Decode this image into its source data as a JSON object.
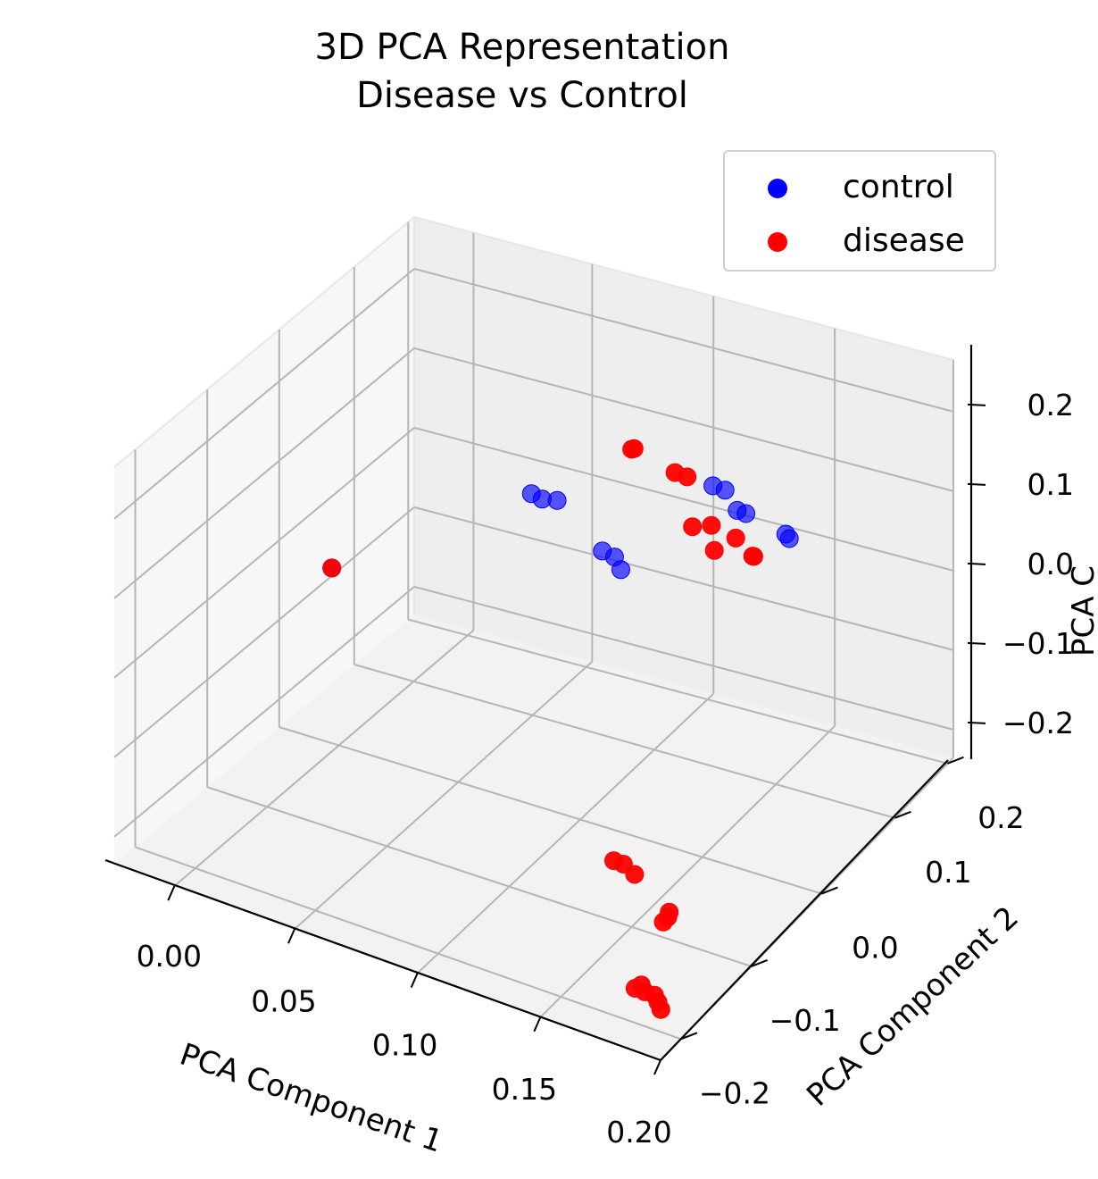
{
  "chart_data": {
    "type": "scatter",
    "subtype": "3d-scatter",
    "title": "3D PCA Representation",
    "subtitle": "Disease vs Control",
    "xlabel": "PCA Component 1",
    "ylabel": "PCA Component 2",
    "zlabel": "PCA C",
    "x_ticks": [
      "0.00",
      "0.05",
      "0.10",
      "0.15",
      "0.20"
    ],
    "y_ticks": [
      "−0.2",
      "−0.1",
      "0.0",
      "0.1",
      "0.2"
    ],
    "z_ticks": [
      "−0.2",
      "−0.1",
      "0.0",
      "0.1",
      "0.2"
    ],
    "xlim": [
      0.0,
      0.2
    ],
    "ylim": [
      -0.2,
      0.2
    ],
    "zlim": [
      -0.2,
      0.2
    ],
    "grid": true,
    "legend_position": "top-right",
    "series": [
      {
        "name": "control",
        "color": "#0000ff",
        "points": [
          {
            "x": 0.0,
            "y": 0.0,
            "z": 0.0
          },
          {
            "x": 0.04,
            "y": 0.15,
            "z": 0.03
          },
          {
            "x": 0.045,
            "y": 0.148,
            "z": 0.03
          },
          {
            "x": 0.05,
            "y": 0.152,
            "z": 0.031
          },
          {
            "x": 0.072,
            "y": 0.14,
            "z": -0.0
          },
          {
            "x": 0.077,
            "y": 0.14,
            "z": -0.002
          },
          {
            "x": 0.081,
            "y": 0.135,
            "z": -0.01
          },
          {
            "x": 0.095,
            "y": 0.22,
            "z": 0.05
          },
          {
            "x": 0.1,
            "y": 0.22,
            "z": 0.05
          },
          {
            "x": 0.105,
            "y": 0.22,
            "z": 0.03
          },
          {
            "x": 0.11,
            "y": 0.215,
            "z": 0.035
          },
          {
            "x": 0.125,
            "y": 0.22,
            "z": 0.022
          },
          {
            "x": 0.127,
            "y": 0.218,
            "z": 0.02
          }
        ]
      },
      {
        "name": "disease",
        "color": "#ff0000",
        "points": [
          {
            "x": 0.0,
            "y": 0.0,
            "z": 0.0
          },
          {
            "x": 0.07,
            "y": 0.19,
            "z": 0.09
          },
          {
            "x": 0.071,
            "y": 0.19,
            "z": 0.092
          },
          {
            "x": 0.085,
            "y": 0.2,
            "z": 0.07
          },
          {
            "x": 0.09,
            "y": 0.2,
            "z": 0.07
          },
          {
            "x": 0.095,
            "y": 0.19,
            "z": 0.02
          },
          {
            "x": 0.1,
            "y": 0.2,
            "z": 0.02
          },
          {
            "x": 0.104,
            "y": 0.19,
            "z": 0.0
          },
          {
            "x": 0.11,
            "y": 0.2,
            "z": 0.015
          },
          {
            "x": 0.117,
            "y": 0.2,
            "z": 0.0
          },
          {
            "x": 0.118,
            "y": 0.198,
            "z": 0.002
          },
          {
            "x": 0.13,
            "y": -0.05,
            "z": -0.19
          },
          {
            "x": 0.134,
            "y": -0.05,
            "z": -0.19
          },
          {
            "x": 0.138,
            "y": -0.048,
            "z": -0.2
          },
          {
            "x": 0.15,
            "y": -0.04,
            "z": -0.24
          },
          {
            "x": 0.15,
            "y": -0.042,
            "z": -0.245
          },
          {
            "x": 0.149,
            "y": -0.045,
            "z": -0.25
          },
          {
            "x": 0.15,
            "y": -0.09,
            "z": -0.3
          },
          {
            "x": 0.152,
            "y": -0.088,
            "z": -0.295
          },
          {
            "x": 0.154,
            "y": -0.09,
            "z": -0.3
          },
          {
            "x": 0.158,
            "y": -0.09,
            "z": -0.3
          },
          {
            "x": 0.16,
            "y": -0.092,
            "z": -0.305
          },
          {
            "x": 0.162,
            "y": -0.095,
            "z": -0.31
          }
        ]
      }
    ]
  }
}
